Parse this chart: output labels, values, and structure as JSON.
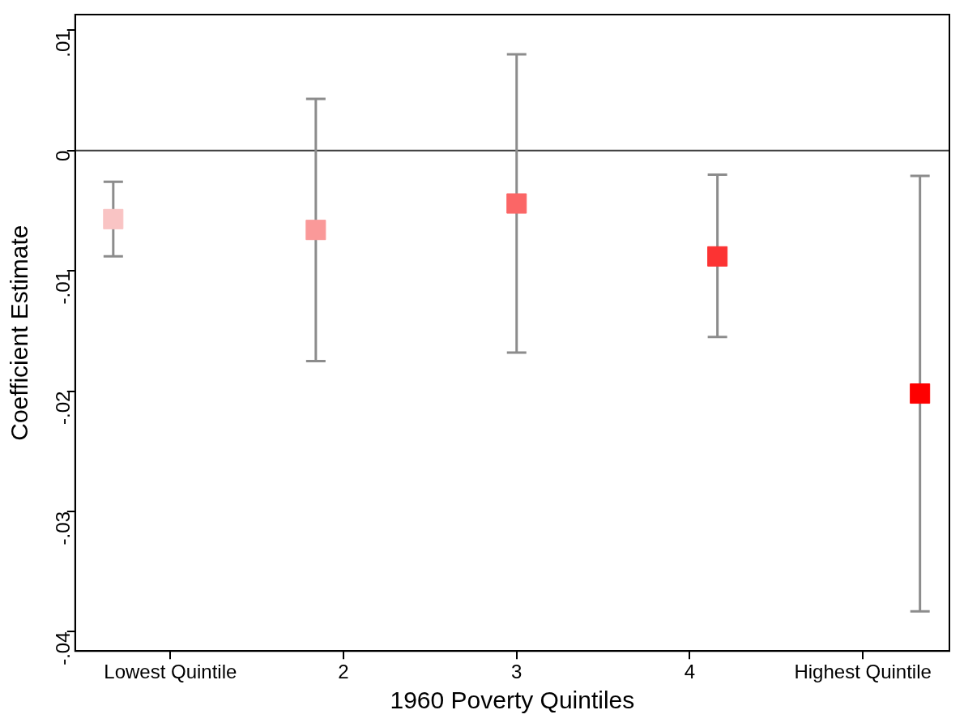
{
  "chart_data": {
    "type": "scatter",
    "xlabel": "1960 Poverty Quintiles",
    "ylabel": "Coefficient Estimate",
    "x": [
      0.67,
      1.84,
      3,
      4.16,
      5.33
    ],
    "series": [
      {
        "values": [
          -0.0057,
          -0.0066,
          -0.0044,
          -0.0088,
          -0.0202
        ],
        "colors": [
          "#f9c4c4",
          "#fa9999",
          "#fb6666",
          "#fc3333",
          "#fe0000"
        ],
        "errors": [
          [
            -0.0088,
            -0.0026
          ],
          [
            -0.0175,
            0.0043
          ],
          [
            -0.0168,
            0.008
          ],
          [
            -0.0155,
            -0.002
          ],
          [
            -0.0383,
            -0.0021
          ]
        ]
      }
    ],
    "xlim": [
      0.45,
      5.5
    ],
    "xticks": [
      {
        "value": 1,
        "label": "Lowest Quintile"
      },
      {
        "value": 2,
        "label": "2"
      },
      {
        "value": 3,
        "label": "3"
      },
      {
        "value": 4,
        "label": "4"
      },
      {
        "value": 5,
        "label": "Highest Quintile"
      }
    ],
    "ylim": [
      -0.0416,
      0.0113
    ],
    "yticks": [
      {
        "value": -0.04,
        "label": "-.04"
      },
      {
        "value": -0.03,
        "label": "-.03"
      },
      {
        "value": -0.02,
        "label": "-.02"
      },
      {
        "value": -0.01,
        "label": "-.01"
      },
      0,
      {
        "value": 0.01,
        "label": ".01"
      }
    ],
    "ref_lines": [
      {
        "axis": "y",
        "value": 0,
        "color": "#3c3c3c"
      }
    ],
    "marker": "square",
    "grid": false
  }
}
